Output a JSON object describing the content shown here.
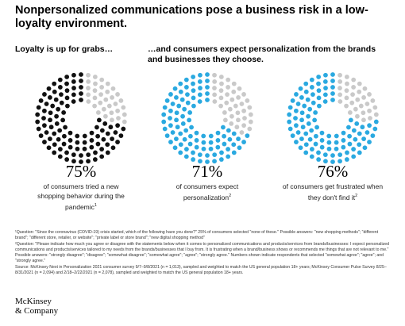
{
  "title": "Nonpersonalized communications pose a business risk in a low-loyalty environment.",
  "subheads": {
    "left": "Loyalty is up for grabs…",
    "right": "…and consumers expect personalization from the brands and businesses they choose."
  },
  "colors": {
    "filled_dark": "#111111",
    "filled_blue": "#2aa9e0",
    "empty": "#c9c9c9"
  },
  "chart_data": [
    {
      "type": "pie",
      "value_percent": 75,
      "label": "75%",
      "description": "of consumers tried a new shopping behavior during the pandemic",
      "footnote_ref": "1",
      "fill_color": "#111111"
    },
    {
      "type": "pie",
      "value_percent": 71,
      "label": "71%",
      "description": "of consumers expect personalization",
      "footnote_ref": "2",
      "fill_color": "#2aa9e0"
    },
    {
      "type": "pie",
      "value_percent": 76,
      "label": "76%",
      "description": "of consumers get frustrated when they don't find it",
      "footnote_ref": "2",
      "fill_color": "#2aa9e0"
    }
  ],
  "footnotes": [
    "¹Question: \"Since the coronavirus (COVID-19) crisis started, which of the following have you done?\" 25% of consumers selected \"none of these.\" Possible answers: \"new shopping methods\"; \"different brand\"; \"different store, retailer, or website\"; \"private label or store brand\"; \"new digital shopping method\"",
    "²Question: \"Please indicate how much you agree or disagree with the statements below when it comes to personalized communications and products/services from brands/businesses: I expect personalized communications and products/services tailored to my needs from the brands/businesses that I buy from. It is frustrating when a brand/business shows or recommends me things that are not relevant to me.\" Possible answers: \"strongly disagree\"; \"disagree\"; \"somewhat disagree\"; \"somewhat agree\"; \"agree\"; \"strongly agree.\" Numbers shown indicate respondents that selected \"somewhat agree\"; \"agree\"; and \"strongly agree.\"",
    "Source: McKinsey Next in Personalization 2021 consumer survey 9/7–9/8/2021 (n = 1,013), sampled and weighted to match the US general population 18+ years; McKinsey Consumer Pulse Survey 8/25–8/31/2021 (n = 2,094) and 2/18–2/22/2021 (n = 2,078), sampled and weighted to match the US general population 18+ years."
  ],
  "logo": {
    "line1": "McKinsey",
    "line2": "& Company"
  }
}
